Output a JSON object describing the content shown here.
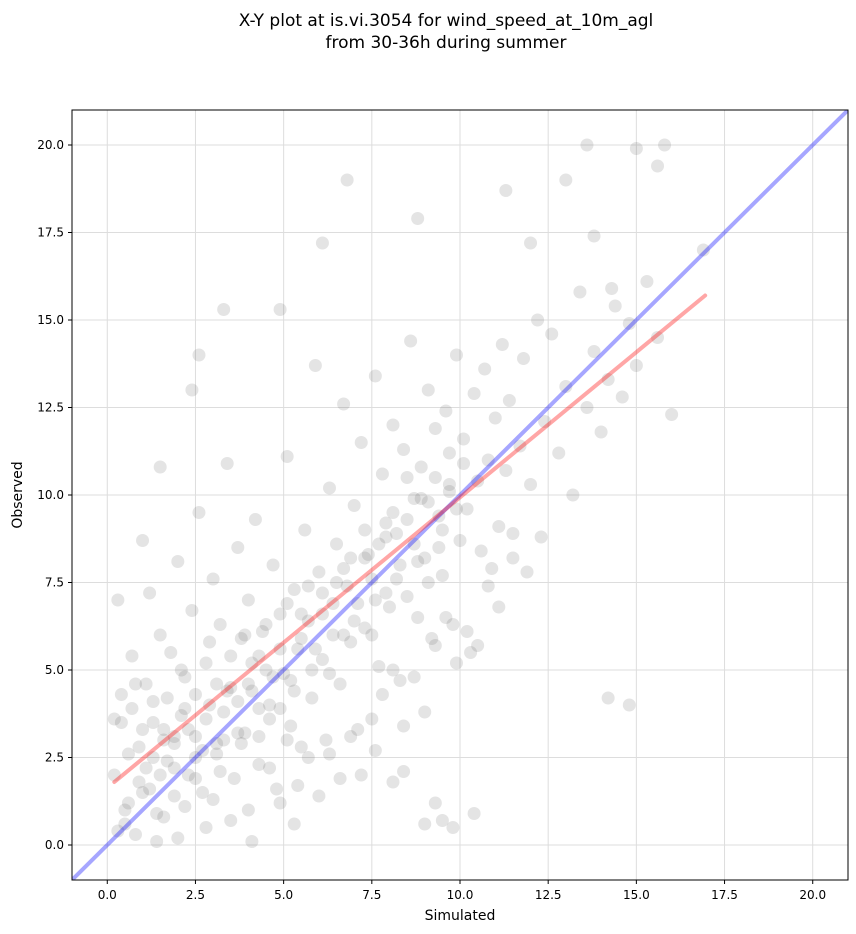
{
  "chart_data": {
    "type": "scatter",
    "title_line1": "X-Y plot at is.vi.3054 for wind_speed_at_10m_agl",
    "title_line2": "from 30-36h during summer",
    "xlabel": "Simulated",
    "ylabel": "Observed",
    "xlim": [
      -1.0,
      21.0
    ],
    "ylim": [
      -1.0,
      21.0
    ],
    "x_ticks": [
      0.0,
      2.5,
      5.0,
      7.5,
      10.0,
      12.5,
      15.0,
      17.5,
      20.0
    ],
    "y_ticks": [
      0.0,
      2.5,
      5.0,
      7.5,
      10.0,
      12.5,
      15.0,
      17.5,
      20.0
    ],
    "x_tick_labels": [
      "0.0",
      "2.5",
      "5.0",
      "7.5",
      "10.0",
      "12.5",
      "15.0",
      "17.5",
      "20.0"
    ],
    "y_tick_labels": [
      "0.0",
      "2.5",
      "5.0",
      "7.5",
      "10.0",
      "12.5",
      "15.0",
      "17.5",
      "20.0"
    ],
    "grid": true,
    "colors": {
      "points": "#555555",
      "one_to_one_line": "#0000ff",
      "fit_line": "#ff0000"
    },
    "one_to_one_line": {
      "x": [
        -1.0,
        21.0
      ],
      "y": [
        -1.0,
        21.0
      ]
    },
    "fit_line": {
      "x": [
        0.2,
        16.95
      ],
      "y": [
        1.8,
        15.7
      ]
    },
    "points": [
      [
        0.2,
        2.0
      ],
      [
        0.3,
        0.4
      ],
      [
        0.4,
        3.5
      ],
      [
        0.5,
        0.6
      ],
      [
        0.6,
        1.2
      ],
      [
        0.7,
        5.4
      ],
      [
        0.8,
        4.6
      ],
      [
        0.9,
        1.8
      ],
      [
        1.0,
        3.3
      ],
      [
        1.1,
        2.2
      ],
      [
        1.2,
        7.2
      ],
      [
        1.3,
        4.1
      ],
      [
        1.4,
        0.9
      ],
      [
        1.5,
        6.0
      ],
      [
        1.6,
        3.0
      ],
      [
        1.7,
        2.4
      ],
      [
        1.8,
        5.5
      ],
      [
        1.9,
        1.4
      ],
      [
        2.0,
        8.1
      ],
      [
        2.1,
        3.7
      ],
      [
        2.2,
        4.8
      ],
      [
        2.3,
        2.0
      ],
      [
        2.4,
        6.7
      ],
      [
        2.5,
        3.1
      ],
      [
        2.6,
        9.5
      ],
      [
        2.7,
        1.5
      ],
      [
        2.8,
        5.2
      ],
      [
        2.9,
        4.0
      ],
      [
        3.0,
        7.6
      ],
      [
        3.1,
        2.6
      ],
      [
        3.2,
        6.3
      ],
      [
        3.3,
        3.8
      ],
      [
        3.4,
        10.9
      ],
      [
        3.5,
        4.5
      ],
      [
        3.6,
        1.9
      ],
      [
        3.7,
        8.5
      ],
      [
        3.8,
        5.9
      ],
      [
        3.9,
        3.2
      ],
      [
        4.0,
        7.0
      ],
      [
        4.1,
        4.4
      ],
      [
        4.2,
        9.3
      ],
      [
        4.3,
        2.3
      ],
      [
        4.4,
        6.1
      ],
      [
        4.5,
        5.0
      ],
      [
        4.6,
        3.6
      ],
      [
        4.7,
        8.0
      ],
      [
        4.8,
        1.6
      ],
      [
        4.9,
        6.6
      ],
      [
        5.0,
        4.9
      ],
      [
        5.1,
        11.1
      ],
      [
        5.2,
        3.4
      ],
      [
        5.3,
        7.3
      ],
      [
        5.4,
        5.6
      ],
      [
        5.5,
        2.8
      ],
      [
        5.6,
        9.0
      ],
      [
        5.7,
        6.4
      ],
      [
        5.8,
        4.2
      ],
      [
        5.9,
        13.7
      ],
      [
        6.0,
        7.8
      ],
      [
        6.1,
        5.3
      ],
      [
        6.2,
        3.0
      ],
      [
        6.3,
        10.2
      ],
      [
        6.4,
        6.9
      ],
      [
        6.5,
        8.6
      ],
      [
        6.6,
        4.6
      ],
      [
        6.7,
        12.6
      ],
      [
        6.8,
        7.4
      ],
      [
        6.9,
        5.8
      ],
      [
        7.0,
        9.7
      ],
      [
        7.1,
        3.3
      ],
      [
        7.2,
        11.5
      ],
      [
        7.3,
        6.2
      ],
      [
        7.4,
        8.3
      ],
      [
        7.5,
        7.6
      ],
      [
        7.6,
        13.4
      ],
      [
        7.7,
        5.1
      ],
      [
        7.8,
        10.6
      ],
      [
        7.9,
        9.2
      ],
      [
        8.0,
        6.8
      ],
      [
        8.1,
        12.0
      ],
      [
        8.2,
        8.9
      ],
      [
        8.3,
        4.7
      ],
      [
        8.4,
        11.3
      ],
      [
        8.5,
        7.1
      ],
      [
        8.6,
        14.4
      ],
      [
        8.7,
        9.9
      ],
      [
        8.8,
        6.5
      ],
      [
        8.9,
        10.8
      ],
      [
        9.0,
        8.2
      ],
      [
        9.1,
        13.0
      ],
      [
        9.2,
        5.9
      ],
      [
        9.3,
        11.9
      ],
      [
        9.4,
        9.4
      ],
      [
        9.5,
        7.7
      ],
      [
        9.6,
        12.4
      ],
      [
        9.7,
        10.1
      ],
      [
        9.8,
        6.3
      ],
      [
        9.9,
        14.0
      ],
      [
        10.0,
        8.7
      ],
      [
        10.1,
        11.6
      ],
      [
        10.2,
        9.6
      ],
      [
        10.3,
        5.5
      ],
      [
        10.4,
        12.9
      ],
      [
        10.5,
        10.4
      ],
      [
        10.6,
        8.4
      ],
      [
        10.7,
        13.6
      ],
      [
        10.8,
        11.0
      ],
      [
        10.9,
        7.9
      ],
      [
        11.0,
        12.2
      ],
      [
        11.1,
        9.1
      ],
      [
        11.2,
        14.3
      ],
      [
        11.3,
        10.7
      ],
      [
        11.4,
        12.7
      ],
      [
        11.5,
        8.9
      ],
      [
        11.7,
        11.4
      ],
      [
        11.8,
        13.9
      ],
      [
        12.0,
        10.3
      ],
      [
        12.2,
        15.0
      ],
      [
        12.4,
        12.1
      ],
      [
        12.6,
        14.6
      ],
      [
        12.8,
        11.2
      ],
      [
        13.0,
        13.1
      ],
      [
        13.2,
        10.0
      ],
      [
        13.4,
        15.8
      ],
      [
        13.6,
        12.5
      ],
      [
        13.8,
        14.1
      ],
      [
        14.0,
        11.8
      ],
      [
        14.2,
        13.3
      ],
      [
        14.4,
        15.4
      ],
      [
        14.6,
        12.8
      ],
      [
        14.8,
        14.9
      ],
      [
        15.0,
        13.7
      ],
      [
        15.3,
        16.1
      ],
      [
        15.6,
        14.5
      ],
      [
        16.0,
        12.3
      ],
      [
        0.3,
        7.0
      ],
      [
        0.6,
        2.6
      ],
      [
        1.0,
        8.7
      ],
      [
        1.5,
        10.8
      ],
      [
        2.4,
        13.0
      ],
      [
        2.6,
        14.0
      ],
      [
        3.3,
        15.3
      ],
      [
        4.9,
        15.3
      ],
      [
        6.1,
        17.2
      ],
      [
        6.8,
        19.0
      ],
      [
        8.8,
        17.9
      ],
      [
        11.3,
        18.7
      ],
      [
        13.0,
        19.0
      ],
      [
        13.6,
        20.0
      ],
      [
        15.0,
        19.9
      ],
      [
        15.8,
        20.0
      ],
      [
        15.6,
        19.4
      ],
      [
        12.0,
        17.2
      ],
      [
        13.8,
        17.4
      ],
      [
        14.3,
        15.9
      ],
      [
        16.9,
        17.0
      ],
      [
        14.2,
        4.2
      ],
      [
        14.8,
        4.0
      ],
      [
        9.5,
        0.7
      ],
      [
        9.8,
        0.5
      ],
      [
        10.4,
        0.9
      ],
      [
        9.0,
        0.6
      ],
      [
        9.3,
        1.2
      ],
      [
        8.1,
        1.8
      ],
      [
        8.4,
        2.1
      ],
      [
        7.6,
        2.7
      ],
      [
        5.3,
        0.6
      ],
      [
        4.1,
        0.1
      ],
      [
        2.0,
        0.2
      ],
      [
        1.4,
        0.1
      ],
      [
        0.5,
        1.0
      ],
      [
        0.8,
        0.3
      ],
      [
        1.2,
        1.6
      ],
      [
        1.6,
        0.8
      ],
      [
        1.9,
        2.9
      ],
      [
        2.2,
        1.1
      ],
      [
        2.5,
        2.5
      ],
      [
        2.8,
        0.5
      ],
      [
        3.0,
        1.3
      ],
      [
        3.2,
        2.1
      ],
      [
        3.5,
        0.7
      ],
      [
        3.8,
        2.9
      ],
      [
        4.0,
        1.0
      ],
      [
        4.3,
        3.9
      ],
      [
        4.6,
        2.2
      ],
      [
        4.9,
        1.2
      ],
      [
        5.1,
        3.0
      ],
      [
        5.4,
        1.7
      ],
      [
        5.7,
        2.5
      ],
      [
        6.0,
        1.4
      ],
      [
        6.3,
        2.6
      ],
      [
        6.6,
        1.9
      ],
      [
        6.9,
        3.1
      ],
      [
        7.2,
        2.0
      ],
      [
        7.5,
        3.6
      ],
      [
        7.8,
        4.3
      ],
      [
        8.1,
        5.0
      ],
      [
        8.4,
        3.4
      ],
      [
        8.7,
        4.8
      ],
      [
        9.0,
        3.8
      ],
      [
        9.3,
        5.7
      ],
      [
        9.6,
        6.5
      ],
      [
        9.9,
        5.2
      ],
      [
        10.2,
        6.1
      ],
      [
        10.5,
        5.7
      ],
      [
        10.8,
        7.4
      ],
      [
        11.1,
        6.8
      ],
      [
        11.5,
        8.2
      ],
      [
        11.9,
        7.8
      ],
      [
        12.3,
        8.8
      ],
      [
        0.2,
        3.6
      ],
      [
        0.4,
        4.3
      ],
      [
        0.7,
        3.9
      ],
      [
        0.9,
        2.8
      ],
      [
        1.1,
        4.6
      ],
      [
        1.3,
        3.5
      ],
      [
        1.5,
        2.0
      ],
      [
        1.7,
        4.2
      ],
      [
        1.9,
        3.1
      ],
      [
        2.1,
        5.0
      ],
      [
        2.3,
        3.3
      ],
      [
        2.5,
        4.3
      ],
      [
        2.7,
        2.7
      ],
      [
        2.9,
        5.8
      ],
      [
        3.1,
        4.6
      ],
      [
        3.3,
        3.0
      ],
      [
        3.5,
        5.4
      ],
      [
        3.7,
        4.1
      ],
      [
        3.9,
        6.0
      ],
      [
        4.1,
        5.2
      ],
      [
        4.3,
        3.1
      ],
      [
        4.5,
        6.3
      ],
      [
        4.7,
        4.8
      ],
      [
        4.9,
        3.9
      ],
      [
        5.1,
        6.9
      ],
      [
        5.3,
        4.4
      ],
      [
        5.5,
        5.9
      ],
      [
        5.7,
        7.4
      ],
      [
        5.9,
        5.6
      ],
      [
        6.1,
        6.6
      ],
      [
        6.3,
        4.9
      ],
      [
        6.5,
        7.5
      ],
      [
        6.7,
        6.0
      ],
      [
        6.9,
        8.2
      ],
      [
        7.1,
        6.9
      ],
      [
        7.3,
        9.0
      ],
      [
        7.5,
        6.0
      ],
      [
        7.7,
        8.6
      ],
      [
        7.9,
        7.2
      ],
      [
        8.1,
        9.5
      ],
      [
        8.3,
        8.0
      ],
      [
        8.5,
        10.5
      ],
      [
        8.7,
        8.6
      ],
      [
        8.9,
        9.9
      ],
      [
        9.1,
        7.5
      ],
      [
        9.3,
        10.5
      ],
      [
        9.5,
        9.0
      ],
      [
        9.7,
        11.2
      ],
      [
        9.9,
        9.6
      ],
      [
        10.1,
        10.9
      ],
      [
        1.0,
        1.5
      ],
      [
        1.3,
        2.5
      ],
      [
        1.6,
        3.3
      ],
      [
        1.9,
        2.2
      ],
      [
        2.2,
        3.9
      ],
      [
        2.5,
        1.9
      ],
      [
        2.8,
        3.6
      ],
      [
        3.1,
        2.9
      ],
      [
        3.4,
        4.4
      ],
      [
        3.7,
        3.2
      ],
      [
        4.0,
        4.6
      ],
      [
        4.3,
        5.4
      ],
      [
        4.6,
        4.0
      ],
      [
        4.9,
        5.6
      ],
      [
        5.2,
        4.7
      ],
      [
        5.5,
        6.6
      ],
      [
        5.8,
        5.0
      ],
      [
        6.1,
        7.2
      ],
      [
        6.4,
        6.0
      ],
      [
        6.7,
        7.9
      ],
      [
        7.0,
        6.4
      ],
      [
        7.3,
        8.2
      ],
      [
        7.6,
        7.0
      ],
      [
        7.9,
        8.8
      ],
      [
        8.2,
        7.6
      ],
      [
        8.5,
        9.3
      ],
      [
        8.8,
        8.1
      ],
      [
        9.1,
        9.8
      ],
      [
        9.4,
        8.5
      ],
      [
        9.7,
        10.3
      ]
    ]
  }
}
